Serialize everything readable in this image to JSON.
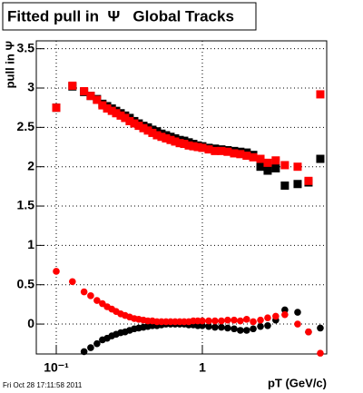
{
  "chart_data": {
    "type": "scatter",
    "title": "Fitted pull in  Ψ   Global Tracks",
    "y_label": "pull in Ψ",
    "x_label": "pT (GeV/c)",
    "footer": "Fri Oct 28 17:11:58 2011",
    "x_log": true,
    "grid": true,
    "xlim": [
      0.073,
      7.1
    ],
    "ylim": [
      -0.38,
      3.6
    ],
    "xticks": [
      {
        "value": 0.1,
        "label": "10⁻¹"
      },
      1
    ],
    "yticks": [
      0,
      0.5,
      1,
      1.5,
      2,
      2.5,
      3,
      3.5
    ],
    "x": [
      0.1,
      0.129,
      0.155,
      0.172,
      0.19,
      0.207,
      0.223,
      0.24,
      0.257,
      0.276,
      0.296,
      0.318,
      0.342,
      0.367,
      0.395,
      0.424,
      0.455,
      0.489,
      0.525,
      0.564,
      0.606,
      0.651,
      0.7,
      0.751,
      0.807,
      0.867,
      0.931,
      1,
      1.105,
      1.22,
      1.35,
      1.49,
      1.65,
      1.82,
      2.01,
      2.23,
      2.5,
      2.8,
      3.18,
      3.67,
      4.49,
      5.33,
      6.42
    ],
    "series": [
      {
        "color": "#000000",
        "marker": "square",
        "values": [
          2.75,
          3.02,
          2.95,
          2.9,
          2.86,
          2.8,
          2.77,
          2.74,
          2.71,
          2.68,
          2.65,
          2.62,
          2.58,
          2.55,
          2.52,
          2.5,
          2.47,
          2.45,
          2.42,
          2.4,
          2.38,
          2.36,
          2.34,
          2.33,
          2.31,
          2.29,
          2.27,
          2.26,
          2.24,
          2.23,
          2.22,
          2.21,
          2.2,
          2.19,
          2.18,
          2.15,
          2.0,
          1.95,
          1.98,
          1.76,
          1.78,
          1.8,
          2.1
        ]
      },
      {
        "color": "#ff0000",
        "marker": "square",
        "values": [
          2.75,
          3.03,
          2.96,
          2.9,
          2.85,
          2.78,
          2.74,
          2.71,
          2.68,
          2.65,
          2.62,
          2.58,
          2.55,
          2.52,
          2.49,
          2.46,
          2.43,
          2.4,
          2.38,
          2.36,
          2.34,
          2.32,
          2.3,
          2.29,
          2.27,
          2.26,
          2.25,
          2.24,
          2.22,
          2.2,
          2.2,
          2.19,
          2.17,
          2.16,
          2.14,
          2.12,
          2.1,
          2.05,
          2.08,
          2.02,
          2.0,
          1.82,
          2.92
        ]
      },
      {
        "color": "#000000",
        "marker": "circle",
        "values": [
          null,
          null,
          -0.35,
          -0.3,
          -0.25,
          -0.2,
          -0.18,
          -0.15,
          -0.13,
          -0.11,
          -0.1,
          -0.08,
          -0.06,
          -0.05,
          -0.04,
          -0.03,
          -0.02,
          -0.02,
          -0.01,
          0.0,
          0,
          0,
          0,
          0,
          -0.01,
          -0.01,
          -0.02,
          -0.02,
          -0.03,
          -0.04,
          -0.04,
          -0.05,
          -0.06,
          -0.08,
          -0.08,
          -0.06,
          -0.03,
          -0.02,
          0.05,
          0.18,
          0.15,
          -0.1,
          -0.05
        ]
      },
      {
        "color": "#ff0000",
        "marker": "circle",
        "values": [
          0.67,
          0.54,
          0.41,
          0.36,
          0.3,
          0.26,
          0.22,
          0.19,
          0.16,
          0.13,
          0.11,
          0.09,
          0.07,
          0.06,
          0.05,
          0.04,
          0.04,
          0.03,
          0.03,
          0.03,
          0.03,
          0.03,
          0.03,
          0.03,
          0.03,
          0.04,
          0.04,
          0.04,
          0.04,
          0.04,
          0.04,
          0.05,
          0.05,
          0.04,
          0.06,
          0.03,
          0.05,
          0.08,
          0.1,
          0.12,
          0.0,
          -0.1,
          -0.37
        ]
      }
    ]
  }
}
